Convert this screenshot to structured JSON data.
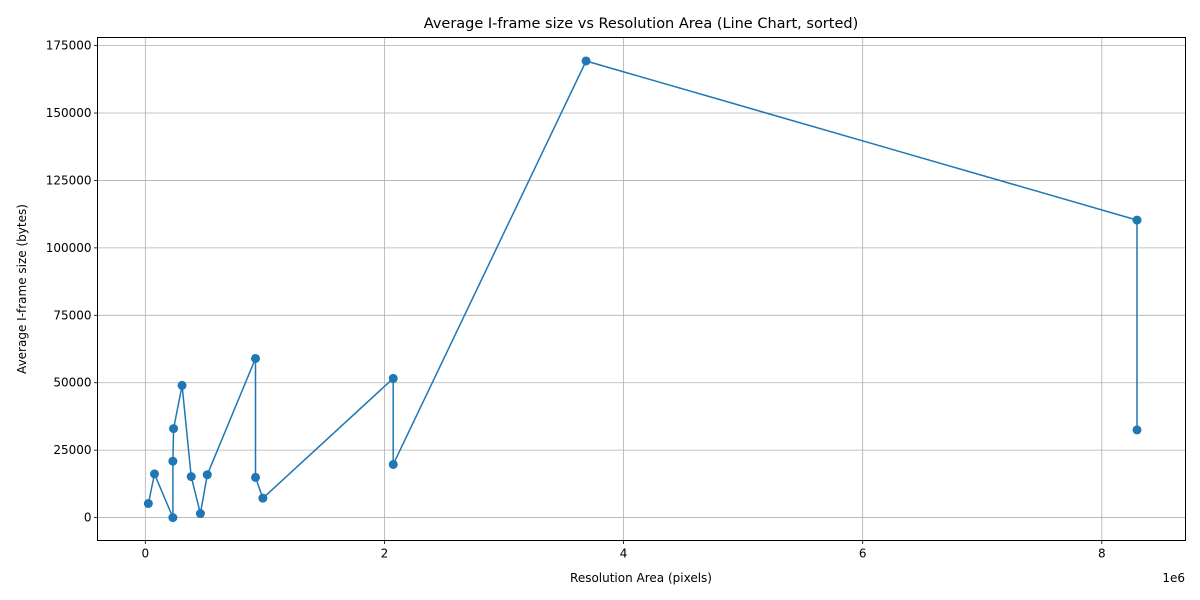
{
  "chart_data": {
    "type": "line",
    "title": "Average I-frame size vs Resolution Area (Line Chart, sorted)",
    "xlabel": "Resolution Area (pixels)",
    "ylabel": "Average I-frame size (bytes)",
    "x_offset_text": "1e6",
    "xlim": [
      -400000,
      8700000
    ],
    "ylim": [
      -8500,
      178000
    ],
    "xticks": [
      0,
      2000000,
      4000000,
      6000000,
      8000000
    ],
    "xtick_labels": [
      "0",
      "2",
      "4",
      "6",
      "8"
    ],
    "yticks": [
      0,
      25000,
      50000,
      75000,
      100000,
      125000,
      150000,
      175000
    ],
    "ytick_labels": [
      "0",
      "25000",
      "50000",
      "75000",
      "100000",
      "125000",
      "150000",
      "175000"
    ],
    "grid": true,
    "color": "#1f77b4",
    "marker": "circle",
    "x": [
      25344,
      76800,
      230400,
      230400,
      236160,
      307200,
      384000,
      460800,
      518400,
      921600,
      921600,
      983040,
      2073600,
      2073600,
      3686400,
      8294400,
      8294400
    ],
    "y": [
      5200,
      16200,
      0,
      20900,
      33000,
      49000,
      15200,
      1500,
      15900,
      59000,
      14900,
      7200,
      51600,
      19700,
      169300,
      110300,
      32500
    ]
  }
}
